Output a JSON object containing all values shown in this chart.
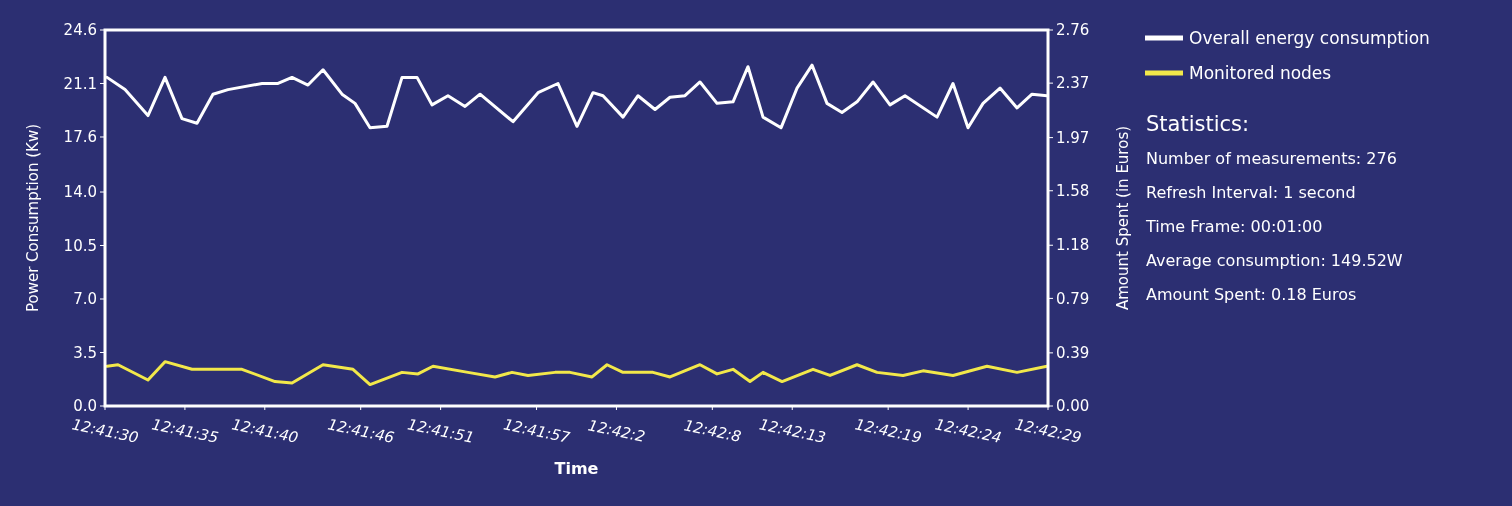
{
  "chart_data": {
    "type": "line",
    "xlabel": "Time",
    "ylabel": "Power Consumption (Kw)",
    "y2label": "Amount Spent (in Euros)",
    "xlim": [
      12.691667,
      12.708056
    ],
    "xticks": [
      {
        "value": 12.691667,
        "label": "12:41:30"
      },
      {
        "value": 12.693056,
        "label": "12:41:35"
      },
      {
        "value": 12.694444,
        "label": "12:41:40"
      },
      {
        "value": 12.696111,
        "label": "12:41:46"
      },
      {
        "value": 12.6975,
        "label": "12:41:51"
      },
      {
        "value": 12.699167,
        "label": "12:41:57"
      },
      {
        "value": 12.700556,
        "label": "12:42:2"
      },
      {
        "value": 12.702222,
        "label": "12:42:8"
      },
      {
        "value": 12.703611,
        "label": "12:42:13"
      },
      {
        "value": 12.705278,
        "label": "12:42:19"
      },
      {
        "value": 12.706667,
        "label": "12:42:24"
      },
      {
        "value": 12.708056,
        "label": "12:42:29"
      }
    ],
    "series": [
      {
        "name": "Overall energy consumption",
        "color": "#ffffff",
        "x": [
          12.691702,
          12.692015,
          12.692414,
          12.69271,
          12.693005,
          12.693266,
          12.693544,
          12.693805,
          12.694396,
          12.694674,
          12.694917,
          12.695195,
          12.695456,
          12.695786,
          12.696012,
          12.696273,
          12.696568,
          12.696829,
          12.69709,
          12.69735,
          12.697628,
          12.697924,
          12.698185,
          12.698758,
          12.699193,
          12.69954,
          12.69987,
          12.700148,
          12.700322,
          12.70067,
          12.700931,
          12.701226,
          12.701487,
          12.701747,
          12.702008,
          12.702304,
          12.702582,
          12.702842,
          12.703103,
          12.703416,
          12.703694,
          12.703955,
          12.704215,
          12.704476,
          12.704737,
          12.705015,
          12.70531,
          12.705571,
          12.706127,
          12.706405,
          12.706666,
          12.706927,
          12.707222,
          12.707518,
          12.707778,
          12.708039
        ],
        "values": [
          21.5,
          20.7,
          19.0,
          21.5,
          18.8,
          18.5,
          20.4,
          20.7,
          21.1,
          21.1,
          21.5,
          21.0,
          22.0,
          20.4,
          19.8,
          18.2,
          18.3,
          21.5,
          21.5,
          19.7,
          20.3,
          19.6,
          20.4,
          18.6,
          20.5,
          21.1,
          18.3,
          20.5,
          20.3,
          18.9,
          20.3,
          19.4,
          20.2,
          20.3,
          21.2,
          19.8,
          19.9,
          22.2,
          18.9,
          18.2,
          20.8,
          22.3,
          19.8,
          19.2,
          19.9,
          21.2,
          19.7,
          20.3,
          18.9,
          21.1,
          18.2,
          19.8,
          20.8,
          19.5,
          20.4,
          20.3
        ]
      },
      {
        "name": "Monitored nodes",
        "color": "#f2e84a",
        "x": [
          12.691702,
          12.691893,
          12.692414,
          12.69271,
          12.693179,
          12.694048,
          12.694622,
          12.694917,
          12.695456,
          12.695977,
          12.696273,
          12.696829,
          12.697107,
          12.697368,
          12.697976,
          12.698445,
          12.698741,
          12.699019,
          12.699488,
          12.699749,
          12.700131,
          12.700392,
          12.70067,
          12.701191,
          12.701487,
          12.702008,
          12.702304,
          12.702582,
          12.702877,
          12.703103,
          12.703434,
          12.703972,
          12.704268,
          12.704737,
          12.705085,
          12.705537,
          12.705884,
          12.706405,
          12.706996,
          12.707518,
          12.708039
        ],
        "values": [
          2.6,
          2.7,
          1.7,
          2.9,
          2.4,
          2.4,
          1.6,
          1.5,
          2.7,
          2.4,
          1.4,
          2.2,
          2.1,
          2.6,
          2.2,
          1.9,
          2.2,
          2.0,
          2.2,
          2.2,
          1.9,
          2.7,
          2.2,
          2.2,
          1.9,
          2.7,
          2.1,
          2.4,
          1.6,
          2.2,
          1.6,
          2.4,
          2.0,
          2.7,
          2.2,
          2.0,
          2.3,
          2.0,
          2.6,
          2.2,
          2.6
        ]
      }
    ],
    "ylim": [
      0,
      24.6
    ],
    "yticks": [
      {
        "value": 0,
        "label": "0.0"
      },
      3.5,
      {
        "value": 7,
        "label": "7.0"
      },
      10.5,
      {
        "value": 14,
        "label": "14.0"
      },
      17.6,
      21.1,
      24.6
    ],
    "y2lim": [
      0,
      2.76
    ],
    "y2ticks": [
      {
        "value": 0,
        "label": "0.00"
      },
      0.39,
      0.79,
      1.18,
      1.58,
      1.97,
      2.37,
      2.76
    ],
    "grid": false,
    "legend": "top right",
    "annotations": [
      "Statistics:",
      "Number of measurements: 276",
      "Refresh Interval: 1 second",
      "Time Frame: 00:01:00",
      "Average consumption: 149.52W",
      "Amount Spent: 0.18 Euros"
    ]
  }
}
